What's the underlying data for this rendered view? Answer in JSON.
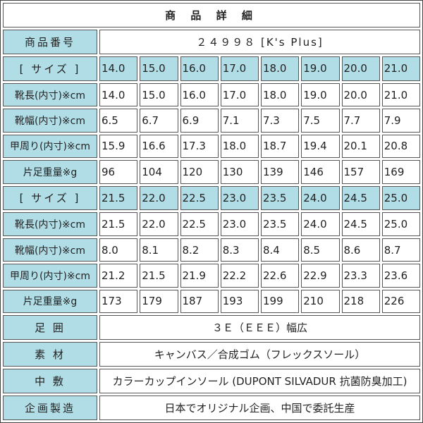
{
  "title": "商 品 詳 細",
  "product_number": {
    "label": "商品番号",
    "value": "２４９９８ [K's Plus]"
  },
  "size_blocks": [
    {
      "size_label": "[ サイズ ]",
      "sizes": [
        "14.0",
        "15.0",
        "16.0",
        "17.0",
        "18.0",
        "19.0",
        "20.0",
        "21.0"
      ],
      "rows": [
        {
          "label": "靴長(内寸)※cm",
          "values": [
            "14.0",
            "15.0",
            "16.0",
            "17.0",
            "18.0",
            "19.0",
            "20.0",
            "21.0"
          ]
        },
        {
          "label": "靴幅(内寸)※cm",
          "values": [
            "6.5",
            "6.7",
            "6.9",
            "7.1",
            "7.3",
            "7.5",
            "7.7",
            "7.9"
          ]
        },
        {
          "label": "甲周り(内寸)※cm",
          "values": [
            "15.9",
            "16.6",
            "17.3",
            "18.0",
            "18.7",
            "19.4",
            "20.1",
            "20.8"
          ]
        },
        {
          "label": "片足重量※g",
          "values": [
            "96",
            "104",
            "120",
            "130",
            "139",
            "146",
            "157",
            "169"
          ]
        }
      ]
    },
    {
      "size_label": "[ サイズ ]",
      "sizes": [
        "21.5",
        "22.0",
        "22.5",
        "23.0",
        "23.5",
        "24.0",
        "24.5",
        "25.0"
      ],
      "rows": [
        {
          "label": "靴長(内寸)※cm",
          "values": [
            "21.5",
            "22.0",
            "22.5",
            "23.0",
            "23.5",
            "24.0",
            "24.5",
            "25.0"
          ]
        },
        {
          "label": "靴幅(内寸)※cm",
          "values": [
            "8.0",
            "8.1",
            "8.2",
            "8.3",
            "8.4",
            "8.5",
            "8.6",
            "8.7"
          ]
        },
        {
          "label": "甲周り(内寸)※cm",
          "values": [
            "21.2",
            "21.5",
            "21.9",
            "22.2",
            "22.6",
            "22.9",
            "23.3",
            "23.6"
          ]
        },
        {
          "label": "片足重量※g",
          "values": [
            "173",
            "179",
            "187",
            "193",
            "199",
            "210",
            "218",
            "226"
          ]
        }
      ]
    }
  ],
  "details": [
    {
      "label": "足 囲",
      "value": "３Ｅ（ＥＥＥ）幅広"
    },
    {
      "label": "素 材",
      "value": "キャンバス／合成ゴム（フレックスソール）"
    },
    {
      "label": "中 敷",
      "value": "カラーカップインソール (DUPONT SILVADUR 抗菌防臭加工)"
    },
    {
      "label": "企画製造",
      "value": "日本でオリジナル企画、中国で委託生産"
    }
  ],
  "colors": {
    "label_bg": "#b0dde6",
    "border": "#555555"
  }
}
